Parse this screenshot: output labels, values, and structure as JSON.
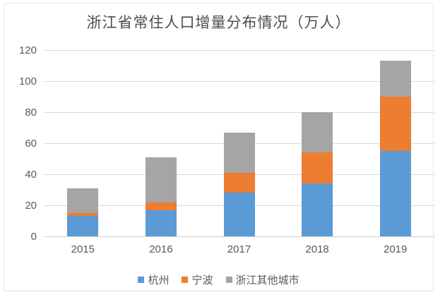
{
  "chart_data": {
    "type": "bar",
    "stacked": true,
    "title": "浙江省常住人口增量分布情况（万人）",
    "categories": [
      "2015",
      "2016",
      "2017",
      "2018",
      "2019"
    ],
    "series": [
      {
        "name": "杭州",
        "color": "#5B9BD5",
        "values": [
          13,
          17,
          28,
          34,
          55
        ]
      },
      {
        "name": "宁波",
        "color": "#ED7D31",
        "values": [
          2,
          5,
          13,
          20,
          35
        ]
      },
      {
        "name": "浙江其他城市",
        "color": "#A5A5A5",
        "values": [
          16,
          29,
          26,
          26,
          23
        ]
      }
    ],
    "totals": [
      31,
      51,
      67,
      80,
      113
    ],
    "xlabel": "",
    "ylabel": "",
    "ylim": [
      0,
      120
    ],
    "yticks": [
      0,
      20,
      40,
      60,
      80,
      100,
      120
    ],
    "grid": true,
    "legend_position": "bottom",
    "colors": {
      "gridline": "#d9d9d9",
      "axis_line": "#cfcfcf",
      "tick_label": "#595959",
      "title": "#4d4d4d",
      "card_border": "#e7e7e7",
      "background": "#ffffff"
    }
  }
}
